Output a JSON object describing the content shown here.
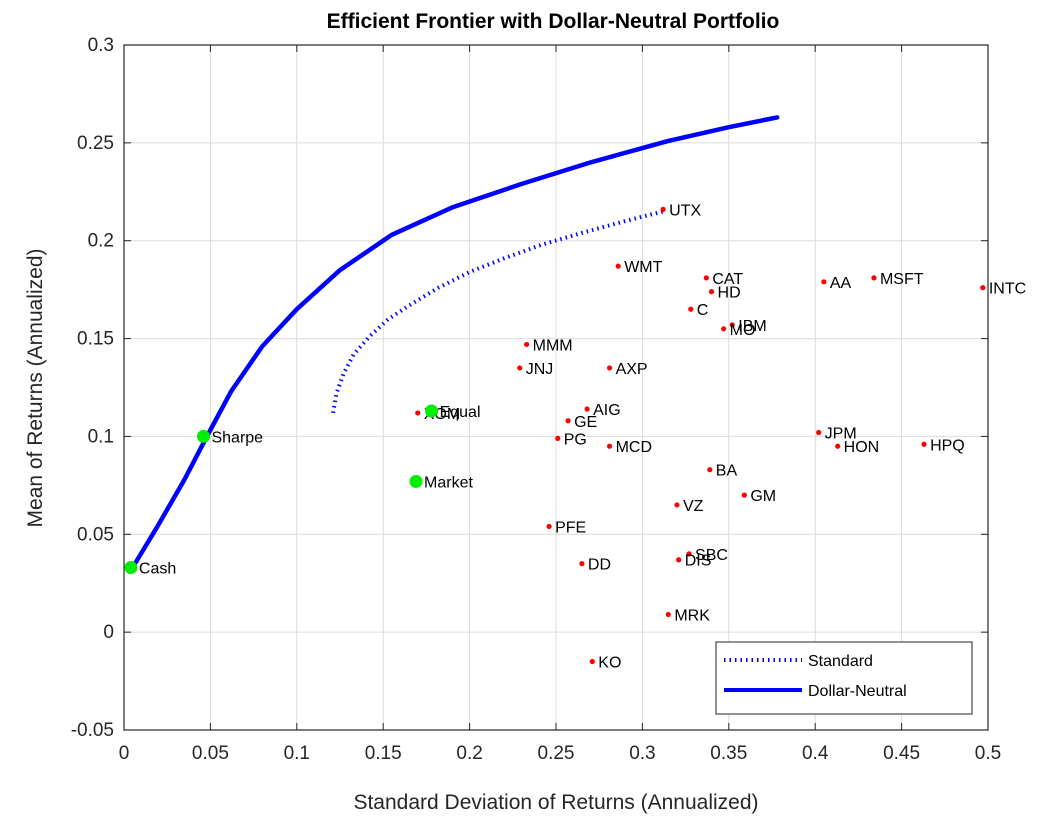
{
  "chart_data": {
    "type": "scatter",
    "title": "Efficient Frontier with Dollar-Neutral Portfolio",
    "xlabel": "Standard Deviation of Returns (Annualized)",
    "ylabel": "Mean of Returns (Annualized)",
    "xlim": [
      0,
      0.5
    ],
    "ylim": [
      -0.05,
      0.3
    ],
    "xticks": [
      "0",
      "0.05",
      "0.1",
      "0.15",
      "0.2",
      "0.25",
      "0.3",
      "0.35",
      "0.4",
      "0.45",
      "0.5"
    ],
    "yticks": [
      "-0.05",
      "0",
      "0.05",
      "0.1",
      "0.15",
      "0.2",
      "0.25",
      "0.3"
    ],
    "grid": true,
    "legend_position": "bottom-right",
    "series": [
      {
        "name": "Standard",
        "style": "dotted",
        "color": "#0000ff",
        "x": [
          0.121,
          0.123,
          0.127,
          0.133,
          0.142,
          0.153,
          0.167,
          0.182,
          0.2,
          0.22,
          0.242,
          0.265,
          0.29,
          0.312
        ],
        "y": [
          0.112,
          0.122,
          0.132,
          0.142,
          0.151,
          0.16,
          0.168,
          0.176,
          0.184,
          0.191,
          0.198,
          0.204,
          0.21,
          0.215
        ]
      },
      {
        "name": "Dollar-Neutral",
        "style": "solid",
        "color": "#0000ff",
        "x": [
          0.005,
          0.02,
          0.035,
          0.048,
          0.062,
          0.08,
          0.1,
          0.125,
          0.155,
          0.19,
          0.23,
          0.27,
          0.315,
          0.35,
          0.378
        ],
        "y": [
          0.033,
          0.055,
          0.078,
          0.1,
          0.123,
          0.146,
          0.165,
          0.185,
          0.203,
          0.217,
          0.229,
          0.24,
          0.251,
          0.258,
          0.263
        ]
      }
    ],
    "points": [
      {
        "label": "UTX",
        "x": 0.312,
        "y": 0.216
      },
      {
        "label": "WMT",
        "x": 0.286,
        "y": 0.187
      },
      {
        "label": "CAT",
        "x": 0.337,
        "y": 0.181
      },
      {
        "label": "HD",
        "x": 0.34,
        "y": 0.174
      },
      {
        "label": "C",
        "x": 0.328,
        "y": 0.165
      },
      {
        "label": "IBM",
        "x": 0.352,
        "y": 0.157
      },
      {
        "label": "MO",
        "x": 0.347,
        "y": 0.155
      },
      {
        "label": "AA",
        "x": 0.405,
        "y": 0.179
      },
      {
        "label": "MSFT",
        "x": 0.434,
        "y": 0.181
      },
      {
        "label": "INTC",
        "x": 0.497,
        "y": 0.176
      },
      {
        "label": "MMM",
        "x": 0.233,
        "y": 0.147
      },
      {
        "label": "JNJ",
        "x": 0.229,
        "y": 0.135
      },
      {
        "label": "AXP",
        "x": 0.281,
        "y": 0.135
      },
      {
        "label": "XOM",
        "x": 0.17,
        "y": 0.112
      },
      {
        "label": "AIG",
        "x": 0.268,
        "y": 0.114
      },
      {
        "label": "GE",
        "x": 0.257,
        "y": 0.108
      },
      {
        "label": "PG",
        "x": 0.251,
        "y": 0.099
      },
      {
        "label": "MCD",
        "x": 0.281,
        "y": 0.095
      },
      {
        "label": "JPM",
        "x": 0.402,
        "y": 0.102
      },
      {
        "label": "HON",
        "x": 0.413,
        "y": 0.095
      },
      {
        "label": "HPQ",
        "x": 0.463,
        "y": 0.096
      },
      {
        "label": "BA",
        "x": 0.339,
        "y": 0.083
      },
      {
        "label": "GM",
        "x": 0.359,
        "y": 0.07
      },
      {
        "label": "VZ",
        "x": 0.32,
        "y": 0.065
      },
      {
        "label": "PFE",
        "x": 0.246,
        "y": 0.054
      },
      {
        "label": "SBC",
        "x": 0.327,
        "y": 0.04
      },
      {
        "label": "DIS",
        "x": 0.321,
        "y": 0.037
      },
      {
        "label": "DD",
        "x": 0.265,
        "y": 0.035
      },
      {
        "label": "MRK",
        "x": 0.315,
        "y": 0.009
      },
      {
        "label": "KO",
        "x": 0.271,
        "y": -0.015
      }
    ],
    "portfolios": [
      {
        "label": "Cash",
        "x": 0.004,
        "y": 0.033
      },
      {
        "label": "Sharpe",
        "x": 0.046,
        "y": 0.1
      },
      {
        "label": "Market",
        "x": 0.169,
        "y": 0.077
      },
      {
        "label": "Equal",
        "x": 0.178,
        "y": 0.113
      }
    ],
    "colors": {
      "asset": "#ff0000",
      "portfolio": "#00ee00",
      "frontier": "#0000ff"
    }
  }
}
